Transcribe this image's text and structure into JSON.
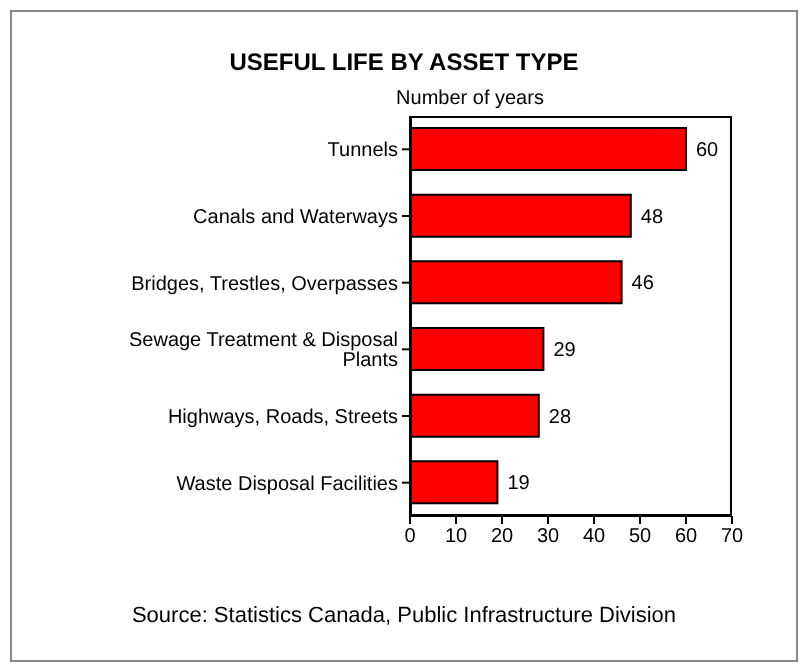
{
  "chart_data": {
    "type": "bar",
    "orientation": "horizontal",
    "title": "USEFUL LIFE BY ASSET TYPE",
    "xlabel": "Number of years",
    "categories": [
      "Tunnels",
      "Canals and Waterways",
      "Bridges, Trestles, Overpasses",
      "Sewage Treatment & Disposal Plants",
      "Highways, Roads, Streets",
      "Waste Disposal Facilities"
    ],
    "values": [
      60,
      48,
      46,
      29,
      28,
      19
    ],
    "color": "#ff0000",
    "xlim": [
      0,
      70
    ],
    "xticks": [
      0,
      10,
      20,
      30,
      40,
      50,
      60,
      70
    ],
    "data_labels": true,
    "annotations": [
      "Source: Statistics Canada, Public Infrastructure Division"
    ]
  }
}
